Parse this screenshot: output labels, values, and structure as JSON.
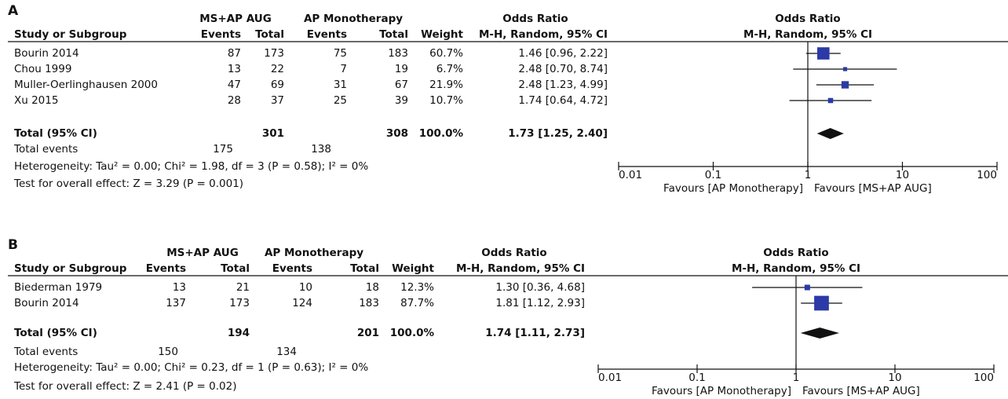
{
  "chart_data": [
    {
      "type": "forest",
      "label": "A",
      "group1": "MS+AP AUG",
      "group2": "AP Monotherapy",
      "effect_title": "Odds Ratio",
      "effect_method": "M-H, Random, 95% CI",
      "col_study": "Study or Subgroup",
      "col_events": "Events",
      "col_total": "Total",
      "col_weight": "Weight",
      "studies": [
        "Bourin 2014",
        "Chou 1999",
        "Muller-Oerlinghausen 2000",
        "Xu 2015"
      ],
      "events1": [
        87,
        13,
        47,
        28
      ],
      "total1": [
        173,
        22,
        69,
        37
      ],
      "events2": [
        75,
        7,
        31,
        25
      ],
      "total2": [
        183,
        19,
        67,
        39
      ],
      "weights": [
        60.7,
        6.7,
        21.9,
        10.7
      ],
      "weight_labels": [
        "60.7%",
        "6.7%",
        "21.9%",
        "10.7%"
      ],
      "or": [
        1.46,
        2.48,
        2.48,
        1.74
      ],
      "ci_low": [
        0.96,
        0.7,
        1.23,
        0.64
      ],
      "ci_high": [
        2.22,
        8.74,
        4.99,
        4.72
      ],
      "or_labels": [
        "1.46 [0.96, 2.22]",
        "2.48 [0.70, 8.74]",
        "2.48 [1.23, 4.99]",
        "1.74 [0.64, 4.72]"
      ],
      "total_label": "Total (95% CI)",
      "total_n1": 301,
      "total_n2": 308,
      "total_weight_label": "100.0%",
      "total_or": 1.73,
      "total_ci_low": 1.25,
      "total_ci_high": 2.4,
      "total_or_label": "1.73 [1.25, 2.40]",
      "events_label": "Total events",
      "total_events1": 175,
      "total_events2": 138,
      "heterogeneity": "Heterogeneity: Tau² = 0.00; Chi² = 1.98, df = 3 (P = 0.58); I² = 0%",
      "overall_test": "Test for overall effect: Z = 3.29 (P = 0.001)",
      "xlim": [
        0.01,
        100
      ],
      "xticks": [
        0.01,
        0.1,
        1,
        10,
        100
      ],
      "log_scale": true,
      "favours_left": "Favours [AP Monotherapy]",
      "favours_right": "Favours [MS+AP AUG]",
      "box_color": "#2b3aa6",
      "diamond_color": "#111111"
    },
    {
      "type": "forest",
      "label": "B",
      "group1": "MS+AP AUG",
      "group2": "AP Monotherapy",
      "effect_title": "Odds Ratio",
      "effect_method": "M-H, Random, 95% CI",
      "col_study": "Study or Subgroup",
      "col_events": "Events",
      "col_total": "Total",
      "col_weight": "Weight",
      "studies": [
        "Biederman 1979",
        "Bourin 2014"
      ],
      "events1": [
        13,
        137
      ],
      "total1": [
        21,
        173
      ],
      "events2": [
        10,
        124
      ],
      "total2": [
        18,
        183
      ],
      "weights": [
        12.3,
        87.7
      ],
      "weight_labels": [
        "12.3%",
        "87.7%"
      ],
      "or": [
        1.3,
        1.81
      ],
      "ci_low": [
        0.36,
        1.12
      ],
      "ci_high": [
        4.68,
        2.93
      ],
      "or_labels": [
        "1.30 [0.36, 4.68]",
        "1.81 [1.12, 2.93]"
      ],
      "total_label": "Total (95% CI)",
      "total_n1": 194,
      "total_n2": 201,
      "total_weight_label": "100.0%",
      "total_or": 1.74,
      "total_ci_low": 1.11,
      "total_ci_high": 2.73,
      "total_or_label": "1.74 [1.11, 2.73]",
      "events_label": "Total events",
      "total_events1": 150,
      "total_events2": 134,
      "heterogeneity": "Heterogeneity: Tau² = 0.00; Chi² = 0.23, df = 1 (P = 0.63); I² = 0%",
      "overall_test": "Test for overall effect: Z = 2.41 (P = 0.02)",
      "xlim": [
        0.01,
        100
      ],
      "xticks": [
        0.01,
        0.1,
        1,
        10,
        100
      ],
      "log_scale": true,
      "favours_left": "Favours [AP Monotherapy]",
      "favours_right": "Favours [MS+AP AUG]",
      "box_color": "#2b3aa6",
      "diamond_color": "#111111"
    }
  ]
}
